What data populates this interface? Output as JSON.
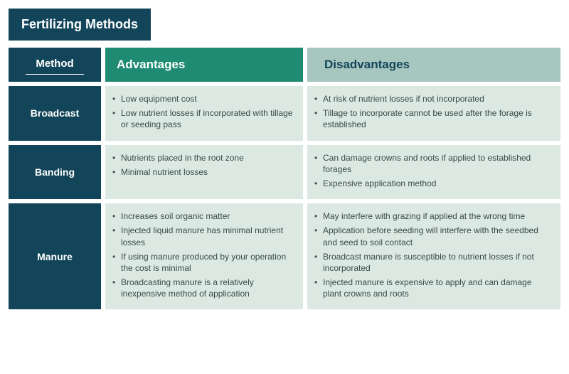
{
  "title": "Fertilizing Methods",
  "colors": {
    "dark": "#124559",
    "green": "#1f8b73",
    "sage": "#a6c6bf",
    "body": "#dce8e2",
    "text": "#3a4a4a"
  },
  "headers": {
    "method": "Method",
    "advantages": "Advantages",
    "disadvantages": "Disadvantages"
  },
  "rows": [
    {
      "method": "Broadcast",
      "advantages": [
        "Low equipment cost",
        "Low nutrient losses if incorporated with tillage or seeding pass"
      ],
      "disadvantages": [
        "At risk of nutrient losses if not incorporated",
        "Tillage to incorporate cannot be used after the forage is established"
      ]
    },
    {
      "method": "Banding",
      "advantages": [
        "Nutrients placed in the root zone",
        "Minimal nutrient losses"
      ],
      "disadvantages": [
        "Can damage crowns and roots if applied to established forages",
        "Expensive application method"
      ]
    },
    {
      "method": "Manure",
      "advantages": [
        "Increases soil organic matter",
        "Injected liquid manure has minimal nutrient losses",
        "If using manure produced by your operation the cost is minimal",
        "Broadcasting manure is a relatively inexpensive method of application"
      ],
      "disadvantages": [
        "May interfere with grazing if applied at the wrong time",
        "Application before seeding will interfere with the seedbed and seed to soil contact",
        "Broadcast manure is susceptible to nutrient losses if not incorporated",
        "Injected manure is expensive to apply and can damage plant crowns and roots"
      ]
    }
  ]
}
